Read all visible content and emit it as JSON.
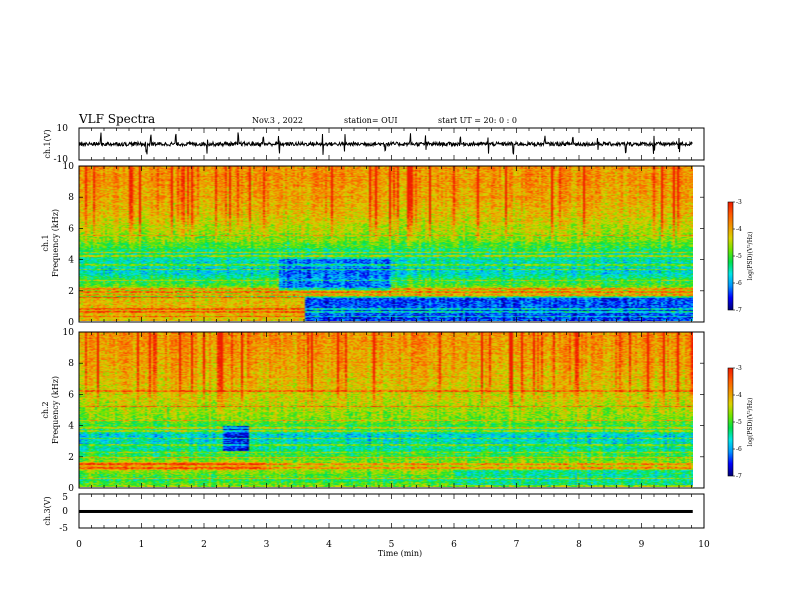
{
  "header": {
    "title": "VLF Spectra",
    "date": "Nov.3 , 2022",
    "station": "station= OUI",
    "start": "start UT = 20: 0 : 0"
  },
  "colors": {
    "colormap": [
      "#00007a",
      "#0000ff",
      "#0096ff",
      "#00e6e6",
      "#00e14b",
      "#6ee600",
      "#dcd200",
      "#f09600",
      "#ff5a00",
      "#f01e00",
      "#ffffff"
    ],
    "trace": "#000000"
  },
  "chart_data": [
    {
      "type": "line",
      "name": "ch1-waveform",
      "ylabel": "ch.1(V)",
      "ylim": [
        -10,
        10
      ],
      "yticks": [
        "10",
        "-10"
      ],
      "x_range_min": [
        0,
        9.82
      ],
      "baseline": 0,
      "noise_amplitude": 0.8,
      "spikes_min": [
        0.35,
        1.08,
        1.15,
        1.55,
        2.05,
        2.55,
        2.95,
        3.2,
        3.9,
        4.25,
        4.9,
        5.3,
        5.55,
        6.1,
        6.55,
        6.95,
        7.45,
        7.9,
        8.3,
        8.75,
        9.2,
        9.6
      ]
    },
    {
      "type": "heatmap",
      "name": "ch1-spectrogram",
      "ylabel": "ch.1 Frequency (kHz)",
      "yticks": [
        "0",
        "2",
        "4",
        "6",
        "8",
        "10"
      ],
      "ylim": [
        0,
        10
      ],
      "x_range_min": [
        0,
        9.82
      ],
      "color_scale": {
        "label": "log(PSD)(V²/Hz)",
        "min": -7,
        "max": -3,
        "ticks": [
          "-3",
          "-4",
          "-5",
          "-6",
          "-7"
        ]
      },
      "freq_profile": [
        {
          "f": 0.0,
          "v": -3.9
        },
        {
          "f": 0.25,
          "v": -4.5
        },
        {
          "f": 0.6,
          "v": -6.3
        },
        {
          "f": 1.4,
          "v": -5.3
        },
        {
          "f": 1.8,
          "v": -4.3
        },
        {
          "f": 2.4,
          "v": -5.1
        },
        {
          "f": 3.2,
          "v": -5.7
        },
        {
          "f": 4.2,
          "v": -5.4
        },
        {
          "f": 5.2,
          "v": -4.8
        },
        {
          "f": 6.5,
          "v": -4.3
        },
        {
          "f": 8.0,
          "v": -4.0
        },
        {
          "f": 10.0,
          "v": -3.8
        }
      ],
      "regions": [
        {
          "t": [
            0,
            3.6
          ],
          "f": [
            0,
            1.5
          ],
          "v": -4.2
        },
        {
          "t": [
            3.6,
            9.82
          ],
          "f": [
            0,
            1.5
          ],
          "v": -6.4
        },
        {
          "t": [
            3.2,
            5.0
          ],
          "f": [
            2.0,
            4.0
          ],
          "v": -6.2
        }
      ],
      "lines_khz": [
        0.25,
        0.55,
        0.75,
        1.5,
        1.65,
        1.85,
        2.05,
        2.6,
        3.3,
        3.6,
        4.2,
        4.4,
        5.5
      ],
      "red_bursts": "top band 6–10 kHz, scattered vertical red streaks"
    },
    {
      "type": "heatmap",
      "name": "ch2-spectrogram",
      "ylabel": "ch.2 Frequency (kHz)",
      "yticks": [
        "0",
        "2",
        "4",
        "6",
        "8",
        "10"
      ],
      "ylim": [
        0,
        10
      ],
      "x_range_min": [
        0,
        9.82
      ],
      "color_scale": {
        "label": "log(PSD)(V²/Hz)",
        "min": -7,
        "max": -3,
        "ticks": [
          "-3",
          "-4",
          "-5",
          "-6",
          "-7"
        ]
      },
      "freq_profile": [
        {
          "f": 0.0,
          "v": -4.7
        },
        {
          "f": 0.4,
          "v": -5.2
        },
        {
          "f": 1.3,
          "v": -4.4
        },
        {
          "f": 1.8,
          "v": -4.9
        },
        {
          "f": 2.5,
          "v": -5.5
        },
        {
          "f": 3.3,
          "v": -5.7
        },
        {
          "f": 4.1,
          "v": -4.9
        },
        {
          "f": 5.2,
          "v": -4.5
        },
        {
          "f": 6.5,
          "v": -4.2
        },
        {
          "f": 8.0,
          "v": -4.0
        },
        {
          "f": 10.0,
          "v": -3.8
        }
      ],
      "regions": [
        {
          "t": [
            2.3,
            2.7
          ],
          "f": [
            2.3,
            3.9
          ],
          "v": -6.6
        },
        {
          "t": [
            6.0,
            9.82
          ],
          "f": [
            0.1,
            1.1
          ],
          "v": -5.4
        },
        {
          "t": [
            0,
            3.0
          ],
          "f": [
            1.1,
            1.6
          ],
          "v": -4.0
        }
      ],
      "lines_khz": [
        0.5,
        1.2,
        1.45,
        1.9,
        2.2,
        2.7,
        3.1,
        3.6,
        3.8,
        4.3,
        5.2,
        6.2
      ],
      "red_bursts": "top band 6–10 kHz, scattered vertical red streaks"
    },
    {
      "type": "line",
      "name": "ch3-waveform",
      "ylabel": "ch.3(V)",
      "ylim": [
        -5,
        5
      ],
      "yticks": [
        "5",
        "0",
        "-5"
      ],
      "x_range_min": [
        0,
        9.82
      ],
      "baseline": 0,
      "noise_amplitude": 0.15,
      "spikes_min": []
    }
  ],
  "x_axis": {
    "label": "Time (min)",
    "range": [
      0,
      10
    ],
    "ticks": [
      "0",
      "1",
      "2",
      "3",
      "4",
      "5",
      "6",
      "7",
      "8",
      "9",
      "10"
    ]
  }
}
